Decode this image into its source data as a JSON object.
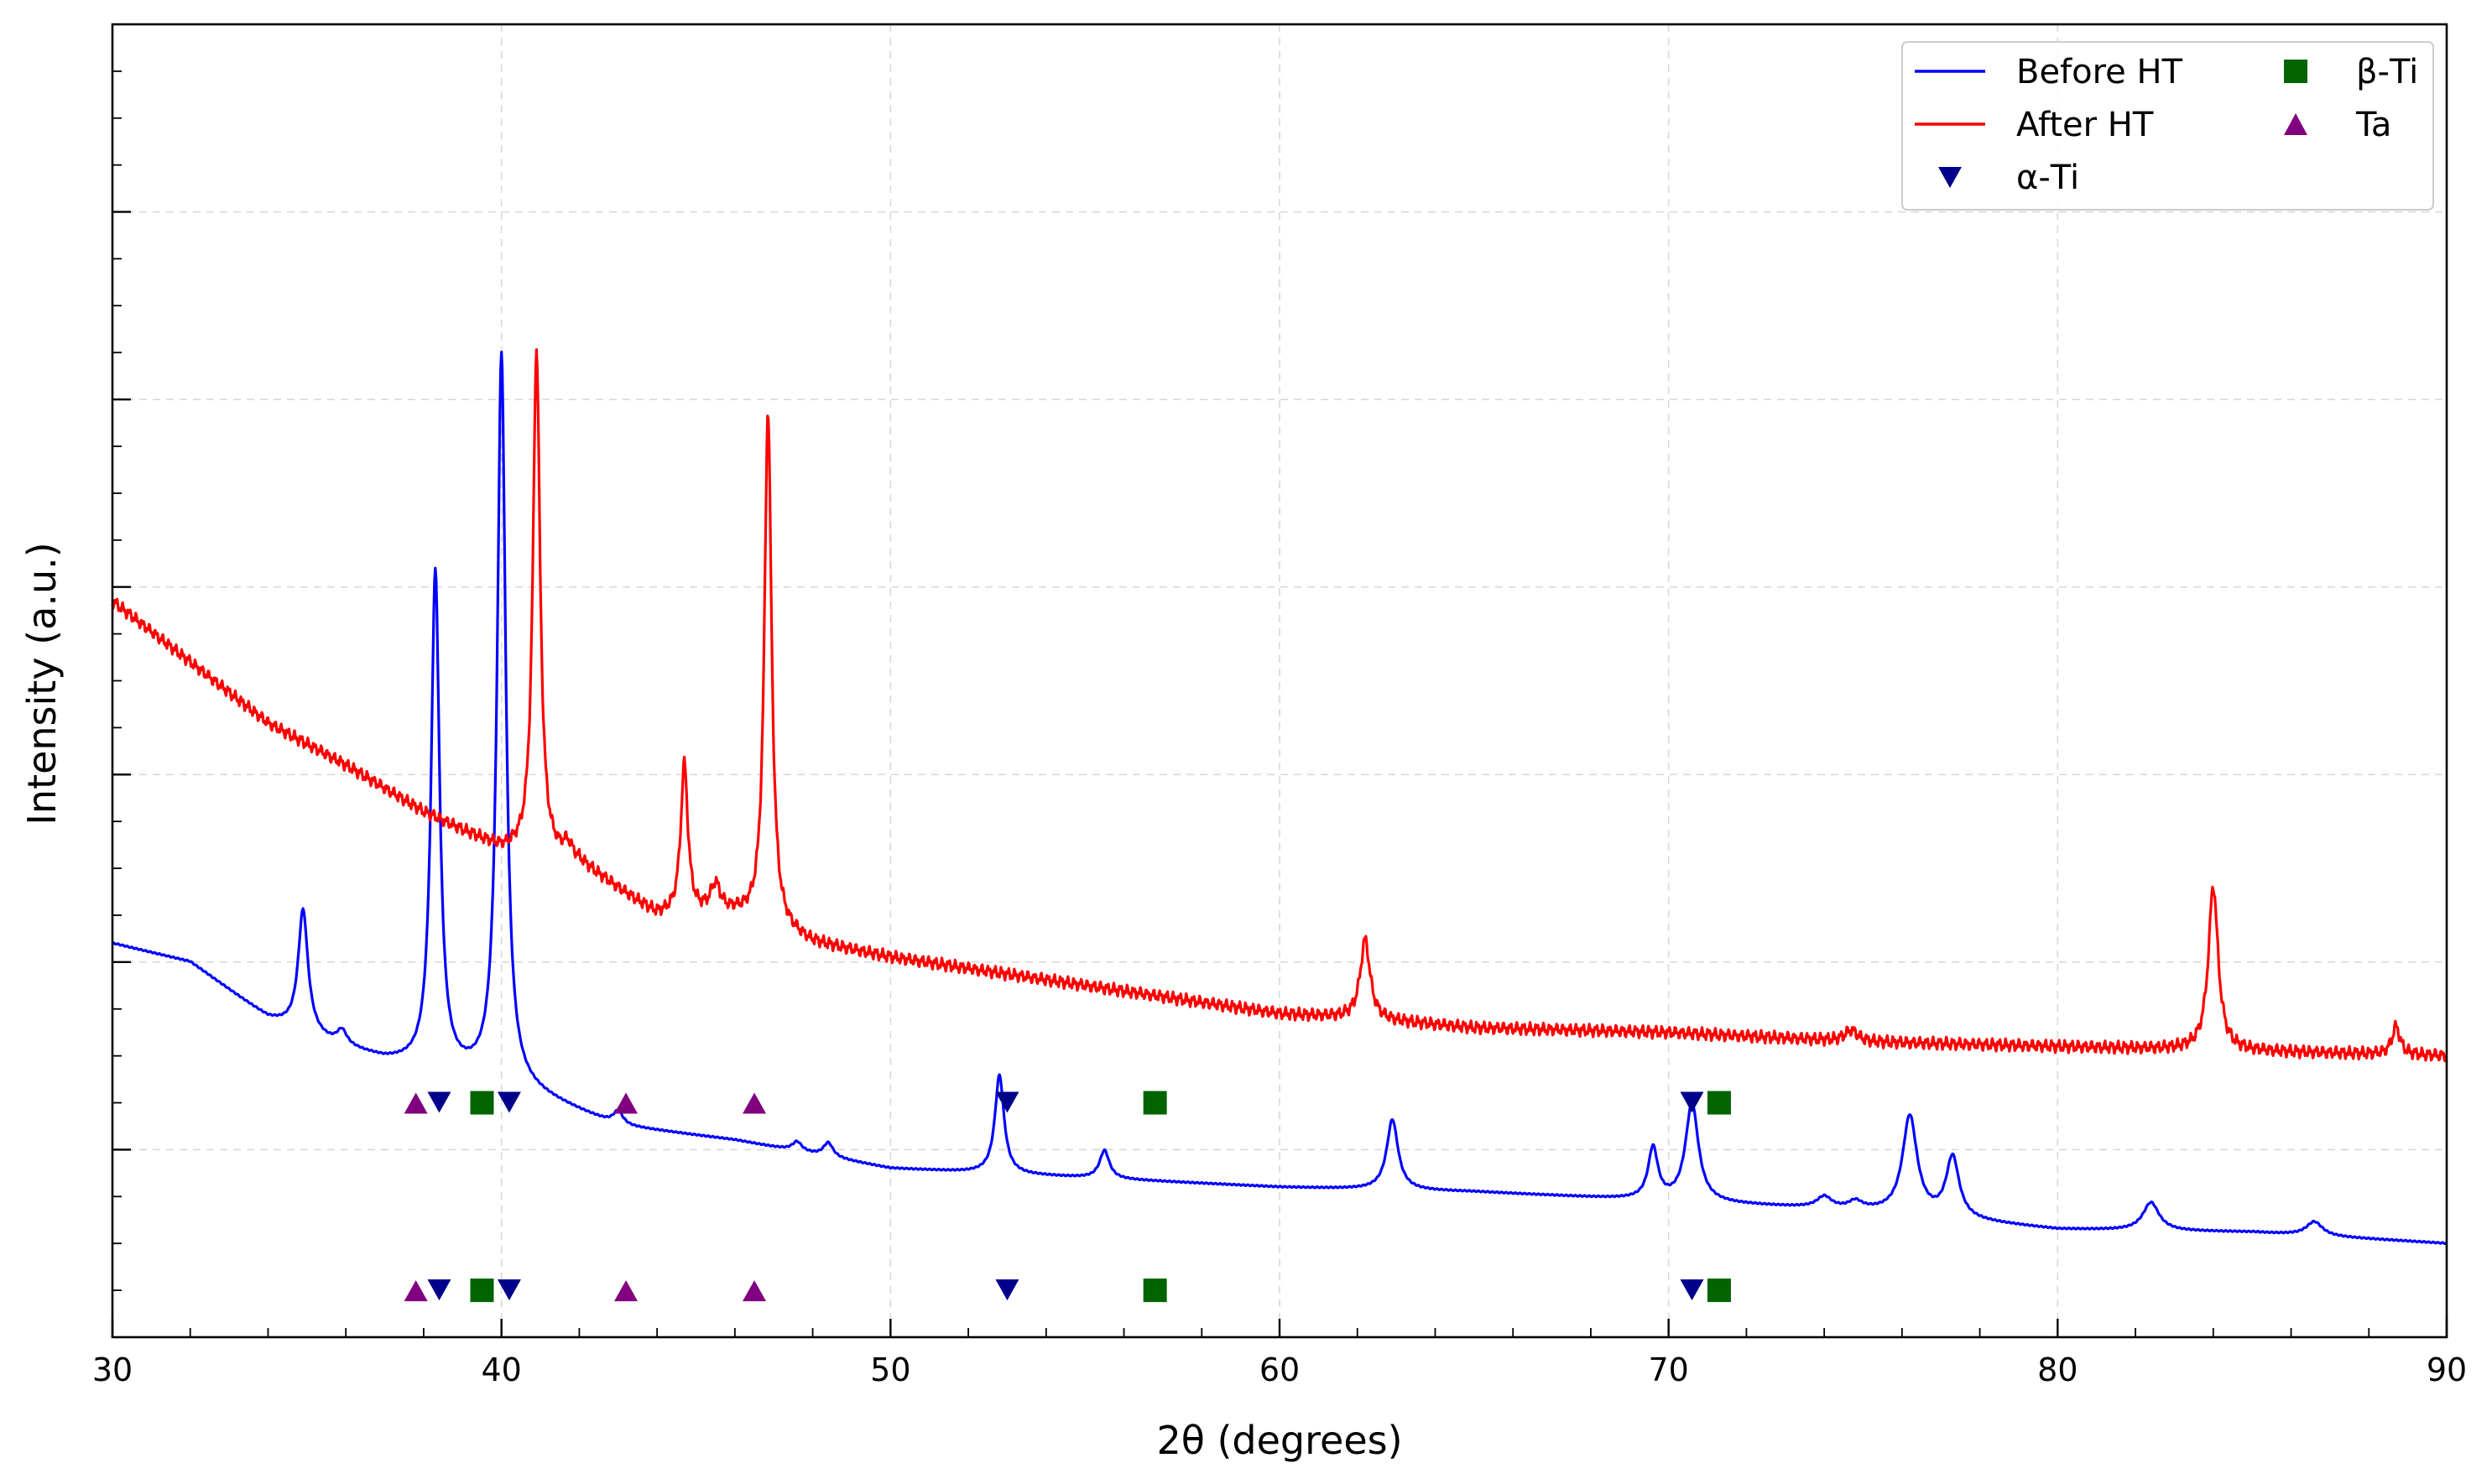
{
  "chart_data": {
    "type": "line",
    "xlabel": "2θ (degrees)",
    "ylabel": "Intensity (a.u.)",
    "xlim": [
      30,
      90
    ],
    "ylim": [
      0,
      14
    ],
    "x_ticks": [
      30,
      40,
      50,
      60,
      70,
      80,
      90
    ],
    "y_tick_labels_shown": false,
    "grid": true,
    "legend_position": "top-right",
    "series": [
      {
        "name": "Before HT",
        "color": "#0000ff",
        "baseline": [
          [
            30,
            4.2
          ],
          [
            32,
            4.0
          ],
          [
            34,
            3.4
          ],
          [
            35.5,
            3.15
          ],
          [
            37,
            2.95
          ],
          [
            40,
            2.72
          ],
          [
            43,
            2.25
          ],
          [
            46,
            2.1
          ],
          [
            50,
            1.8
          ],
          [
            55,
            1.7
          ],
          [
            60,
            1.6
          ],
          [
            65,
            1.55
          ],
          [
            70,
            1.45
          ],
          [
            75,
            1.35
          ],
          [
            80,
            1.15
          ],
          [
            85,
            1.12
          ],
          [
            90,
            1.0
          ]
        ],
        "peaks": [
          {
            "x": 34.9,
            "height": 1.3,
            "width": 0.3
          },
          {
            "x": 35.9,
            "height": 0.15,
            "width": 0.3
          },
          {
            "x": 38.3,
            "height": 5.3,
            "width": 0.26
          },
          {
            "x": 40.0,
            "height": 7.75,
            "width": 0.26
          },
          {
            "x": 43.0,
            "height": 0.15,
            "width": 0.3
          },
          {
            "x": 47.6,
            "height": 0.1,
            "width": 0.3
          },
          {
            "x": 48.4,
            "height": 0.15,
            "width": 0.3
          },
          {
            "x": 52.8,
            "height": 1.05,
            "width": 0.28
          },
          {
            "x": 55.5,
            "height": 0.3,
            "width": 0.3
          },
          {
            "x": 62.9,
            "height": 0.75,
            "width": 0.35
          },
          {
            "x": 69.6,
            "height": 0.55,
            "width": 0.3
          },
          {
            "x": 70.6,
            "height": 1.05,
            "width": 0.4
          },
          {
            "x": 74.0,
            "height": 0.12,
            "width": 0.45
          },
          {
            "x": 74.8,
            "height": 0.08,
            "width": 0.4
          },
          {
            "x": 76.2,
            "height": 1.05,
            "width": 0.45
          },
          {
            "x": 77.3,
            "height": 0.65,
            "width": 0.4
          },
          {
            "x": 82.4,
            "height": 0.3,
            "width": 0.5
          },
          {
            "x": 86.6,
            "height": 0.15,
            "width": 0.5
          }
        ]
      },
      {
        "name": "After HT",
        "color": "#ff0000",
        "baseline": [
          [
            30,
            7.85
          ],
          [
            32,
            7.2
          ],
          [
            34,
            6.55
          ],
          [
            36,
            6.1
          ],
          [
            38,
            5.6
          ],
          [
            40,
            5.2
          ],
          [
            42,
            5.05
          ],
          [
            44,
            4.5
          ],
          [
            46,
            4.5
          ],
          [
            48,
            4.2
          ],
          [
            50,
            4.05
          ],
          [
            55,
            3.75
          ],
          [
            60,
            3.45
          ],
          [
            62,
            3.4
          ],
          [
            65,
            3.3
          ],
          [
            70,
            3.25
          ],
          [
            75,
            3.15
          ],
          [
            80,
            3.1
          ],
          [
            85,
            3.05
          ],
          [
            90,
            3.0
          ]
        ],
        "peaks": [
          {
            "x": 40.9,
            "height": 5.4,
            "width": 0.22
          },
          {
            "x": 41.7,
            "height": 0.15,
            "width": 0.3
          },
          {
            "x": 44.7,
            "height": 1.6,
            "width": 0.22
          },
          {
            "x": 45.5,
            "height": 0.3,
            "width": 0.3
          },
          {
            "x": 46.85,
            "height": 5.5,
            "width": 0.22
          },
          {
            "x": 62.2,
            "height": 0.85,
            "width": 0.3
          },
          {
            "x": 74.7,
            "height": 0.12,
            "width": 0.4
          },
          {
            "x": 84.0,
            "height": 1.75,
            "width": 0.3
          },
          {
            "x": 88.7,
            "height": 0.3,
            "width": 0.25
          }
        ]
      }
    ],
    "phase_markers": [
      {
        "name": "α-Ti",
        "shape": "triangle-down",
        "color": "#00008b",
        "positions": [
          38.4,
          40.2,
          53.0,
          70.6
        ]
      },
      {
        "name": "β-Ti",
        "shape": "square",
        "color": "#006400",
        "positions": [
          39.5,
          56.8,
          71.3
        ]
      },
      {
        "name": "Ta",
        "shape": "triangle-up",
        "color": "#800080",
        "positions": [
          37.8,
          43.2,
          46.5
        ]
      }
    ],
    "marker_rows_y": [
      2.5,
      0.5
    ]
  },
  "legend": {
    "before_label": "Before HT",
    "after_label": "After HT",
    "alpha_label": "α-Ti",
    "beta_label": "β-Ti",
    "ta_label": "Ta"
  },
  "axes": {
    "xlabel": "2θ (degrees)",
    "ylabel": "Intensity (a.u.)"
  }
}
